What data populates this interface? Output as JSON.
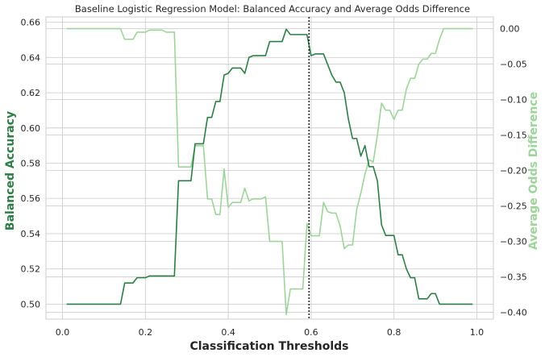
{
  "chart_data": {
    "type": "line",
    "title": "Baseline Logistic Regression Model: Balanced Accuracy and Average Odds Difference",
    "xlabel": "Classification Thresholds",
    "ylabel_left": "Balanced Accuracy",
    "ylabel_right": "Average Odds Difference",
    "xlim": [
      -0.04,
      1.04
    ],
    "ylim_left": [
      0.4915,
      0.663
    ],
    "ylim_right": [
      -0.4095,
      0.0165
    ],
    "x_ticks": [
      "0.0",
      "0.2",
      "0.4",
      "0.6",
      "0.8",
      "1.0"
    ],
    "y_left_ticks": [
      "0.50",
      "0.52",
      "0.54",
      "0.56",
      "0.58",
      "0.60",
      "0.62",
      "0.64",
      "0.66"
    ],
    "y_right_ticks": [
      "0.00",
      "−0.05",
      "−0.10",
      "−0.15",
      "−0.20",
      "−0.25",
      "−0.30",
      "−0.35",
      "−0.40"
    ],
    "y_right_tick_values": [
      0.0,
      -0.05,
      -0.1,
      -0.15,
      -0.2,
      -0.25,
      -0.3,
      -0.35,
      -0.4
    ],
    "vline_x": 0.595,
    "grid": true,
    "colors": {
      "balanced_accuracy": "#2e7d46",
      "avg_odds_difference": "#9fd39c",
      "vline": "#222222",
      "left_label": "#2e7d46",
      "right_label": "#9fd39c"
    },
    "series": [
      {
        "axis": "left",
        "x": [
          0.01,
          0.02,
          0.03,
          0.04,
          0.05,
          0.06,
          0.07,
          0.08,
          0.09,
          0.1,
          0.11,
          0.12,
          0.13,
          0.14,
          0.15,
          0.16,
          0.17,
          0.18,
          0.19,
          0.2,
          0.21,
          0.22,
          0.23,
          0.24,
          0.25,
          0.26,
          0.27,
          0.28,
          0.29,
          0.3,
          0.31,
          0.32,
          0.33,
          0.34,
          0.35,
          0.36,
          0.37,
          0.38,
          0.39,
          0.4,
          0.41,
          0.42,
          0.43,
          0.44,
          0.45,
          0.46,
          0.47,
          0.48,
          0.49,
          0.5,
          0.51,
          0.52,
          0.53,
          0.54,
          0.55,
          0.56,
          0.57,
          0.58,
          0.59,
          0.6,
          0.61,
          0.62,
          0.63,
          0.64,
          0.65,
          0.66,
          0.67,
          0.68,
          0.69,
          0.7,
          0.71,
          0.72,
          0.73,
          0.74,
          0.75,
          0.76,
          0.77,
          0.78,
          0.79,
          0.8,
          0.81,
          0.82,
          0.83,
          0.84,
          0.85,
          0.86,
          0.87,
          0.88,
          0.89,
          0.9,
          0.91,
          0.92,
          0.93,
          0.94,
          0.95,
          0.96,
          0.97,
          0.98,
          0.99
        ],
        "values": [
          0.5,
          0.5,
          0.5,
          0.5,
          0.5,
          0.5,
          0.5,
          0.5,
          0.5,
          0.5,
          0.5,
          0.5,
          0.5,
          0.5,
          0.512,
          0.512,
          0.512,
          0.515,
          0.515,
          0.515,
          0.516,
          0.516,
          0.516,
          0.516,
          0.516,
          0.516,
          0.516,
          0.57,
          0.57,
          0.57,
          0.57,
          0.591,
          0.591,
          0.591,
          0.606,
          0.606,
          0.615,
          0.615,
          0.63,
          0.631,
          0.634,
          0.634,
          0.634,
          0.631,
          0.64,
          0.641,
          0.641,
          0.641,
          0.641,
          0.649,
          0.649,
          0.649,
          0.649,
          0.656,
          0.653,
          0.653,
          0.653,
          0.653,
          0.653,
          0.641,
          0.642,
          0.642,
          0.642,
          0.636,
          0.63,
          0.626,
          0.626,
          0.62,
          0.605,
          0.594,
          0.594,
          0.584,
          0.59,
          0.578,
          0.578,
          0.57,
          0.545,
          0.539,
          0.539,
          0.539,
          0.528,
          0.528,
          0.52,
          0.515,
          0.515,
          0.503,
          0.503,
          0.503,
          0.506,
          0.506,
          0.5,
          0.5,
          0.5,
          0.5,
          0.5,
          0.5,
          0.5,
          0.5,
          0.5
        ]
      },
      {
        "axis": "right",
        "x": [
          0.01,
          0.02,
          0.03,
          0.04,
          0.05,
          0.06,
          0.07,
          0.08,
          0.09,
          0.1,
          0.11,
          0.12,
          0.13,
          0.14,
          0.15,
          0.16,
          0.17,
          0.18,
          0.19,
          0.2,
          0.21,
          0.22,
          0.23,
          0.24,
          0.25,
          0.26,
          0.27,
          0.28,
          0.29,
          0.3,
          0.31,
          0.32,
          0.33,
          0.34,
          0.35,
          0.36,
          0.37,
          0.38,
          0.39,
          0.4,
          0.41,
          0.42,
          0.43,
          0.44,
          0.45,
          0.46,
          0.47,
          0.48,
          0.49,
          0.5,
          0.51,
          0.52,
          0.53,
          0.54,
          0.55,
          0.56,
          0.57,
          0.58,
          0.59,
          0.6,
          0.61,
          0.62,
          0.63,
          0.64,
          0.65,
          0.66,
          0.67,
          0.68,
          0.69,
          0.7,
          0.71,
          0.72,
          0.73,
          0.74,
          0.75,
          0.76,
          0.77,
          0.78,
          0.79,
          0.8,
          0.81,
          0.82,
          0.83,
          0.84,
          0.85,
          0.86,
          0.87,
          0.88,
          0.89,
          0.9,
          0.91,
          0.92,
          0.93,
          0.94,
          0.95,
          0.96,
          0.97,
          0.98,
          0.99
        ],
        "values": [
          0.0,
          0.0,
          0.0,
          0.0,
          0.0,
          0.0,
          0.0,
          0.0,
          0.0,
          0.0,
          0.0,
          0.0,
          0.0,
          0.0,
          -0.015,
          -0.015,
          -0.015,
          -0.005,
          -0.005,
          -0.005,
          -0.002,
          -0.002,
          -0.002,
          -0.002,
          -0.005,
          -0.005,
          -0.005,
          -0.195,
          -0.195,
          -0.195,
          -0.195,
          -0.165,
          -0.165,
          -0.165,
          -0.24,
          -0.24,
          -0.262,
          -0.262,
          -0.198,
          -0.252,
          -0.245,
          -0.245,
          -0.245,
          -0.225,
          -0.243,
          -0.24,
          -0.24,
          -0.24,
          -0.237,
          -0.3,
          -0.3,
          -0.3,
          -0.3,
          -0.403,
          -0.367,
          -0.367,
          -0.367,
          -0.367,
          -0.275,
          -0.292,
          -0.292,
          -0.292,
          -0.245,
          -0.258,
          -0.26,
          -0.26,
          -0.278,
          -0.31,
          -0.305,
          -0.305,
          -0.255,
          -0.232,
          -0.205,
          -0.185,
          -0.188,
          -0.15,
          -0.105,
          -0.115,
          -0.115,
          -0.128,
          -0.115,
          -0.115,
          -0.085,
          -0.07,
          -0.07,
          -0.05,
          -0.043,
          -0.043,
          -0.035,
          -0.035,
          -0.015,
          0.0,
          0.0,
          0.0,
          0.0,
          0.0,
          0.0,
          0.0,
          0.0
        ]
      }
    ]
  }
}
